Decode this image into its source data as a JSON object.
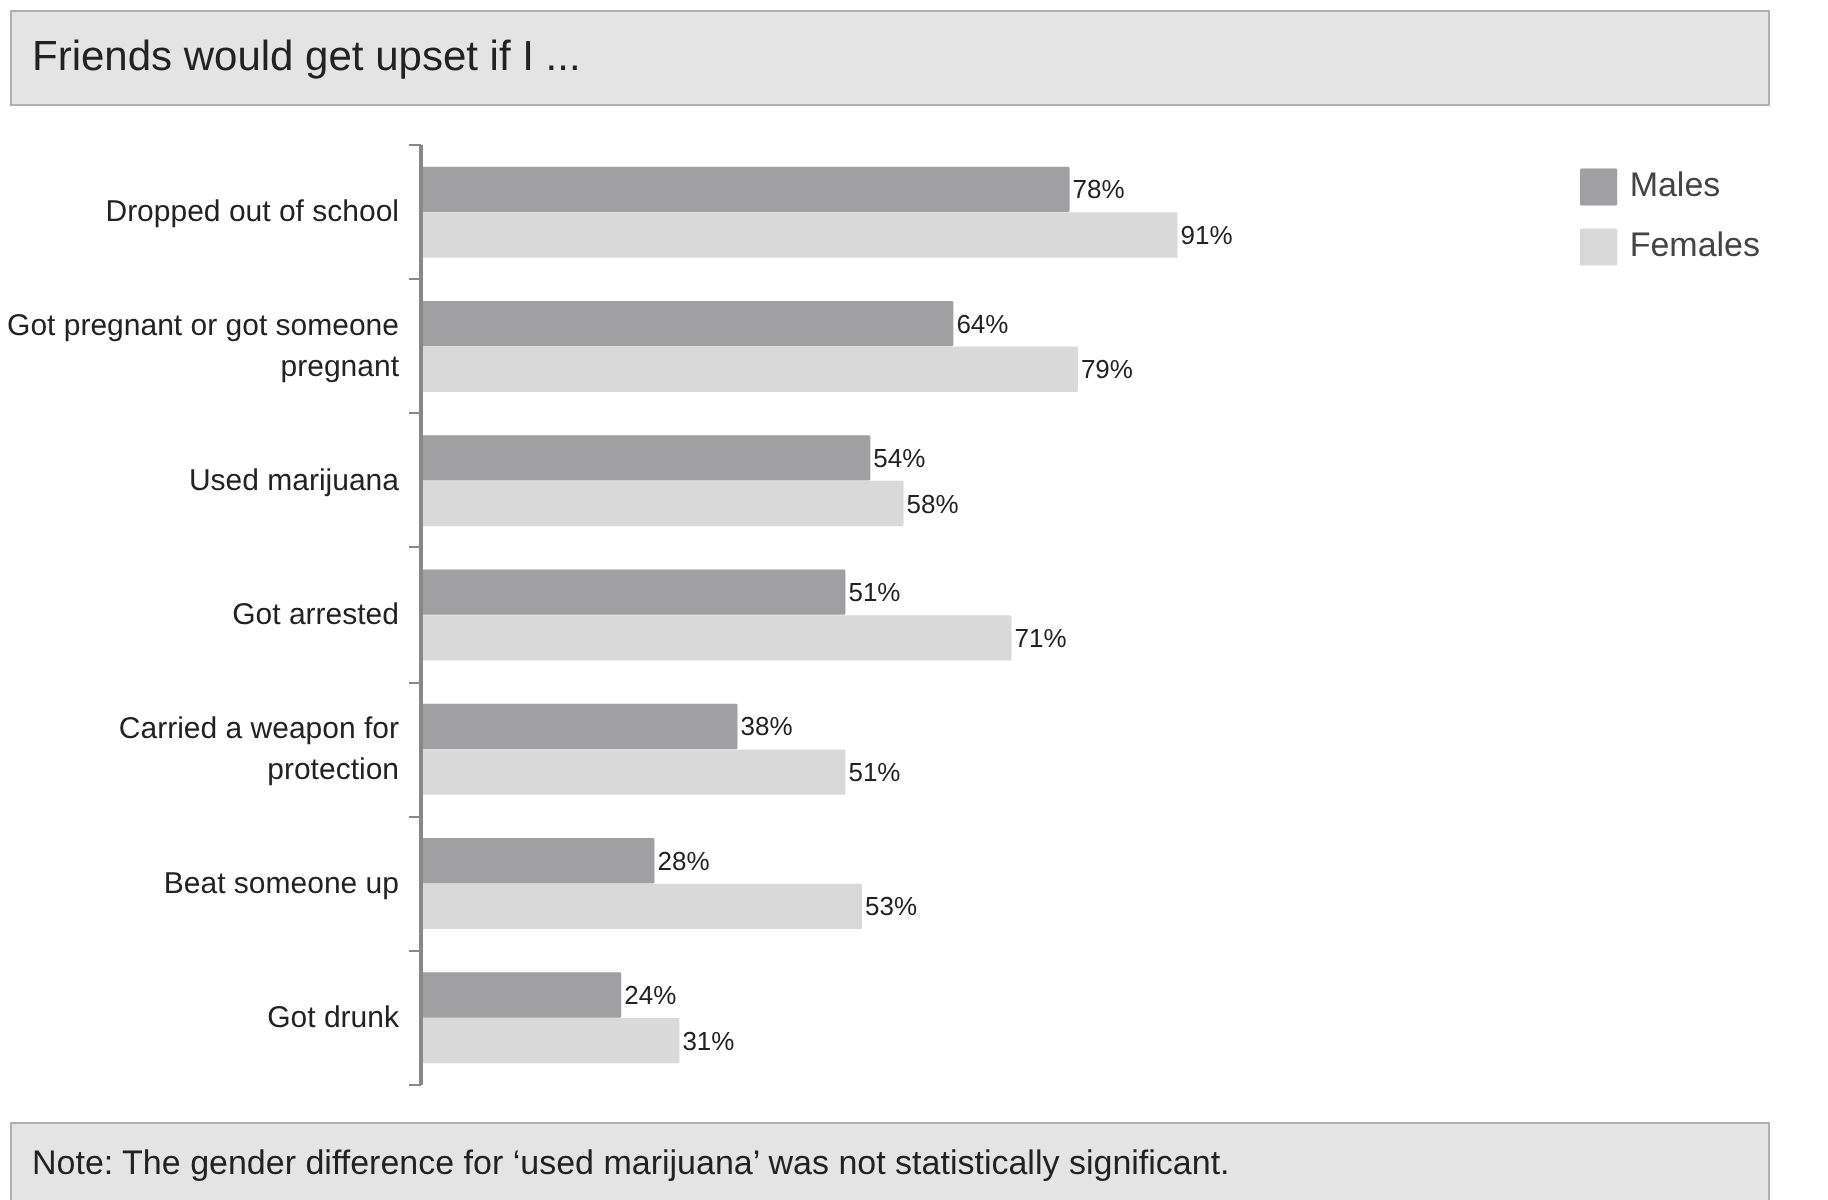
{
  "chart_data": {
    "type": "bar",
    "orientation": "horizontal",
    "title": "Friends would get upset if I ...",
    "categories": [
      "Dropped out of school",
      "Got pregnant or got someone pregnant",
      "Used marijuana",
      "Got arrested",
      "Carried a weapon for protection",
      "Beat someone up",
      "Got drunk"
    ],
    "series": [
      {
        "name": "Males",
        "color": "#a0a0a2",
        "values": [
          78,
          64,
          54,
          51,
          38,
          28,
          24
        ],
        "value_labels": [
          "78%",
          "64%",
          "54%",
          "51%",
          "38%",
          "28%",
          "24%"
        ]
      },
      {
        "name": "Females",
        "color": "#d9d9d9",
        "values": [
          91,
          79,
          58,
          71,
          51,
          53,
          31
        ],
        "value_labels": [
          "91%",
          "79%",
          "58%",
          "71%",
          "51%",
          "53%",
          "31%"
        ]
      }
    ],
    "legend": "top right",
    "grid": false,
    "tick_labels": "y",
    "annotations": [
      "Note: The gender difference for ‘used marijuana’ was not statistically significant."
    ]
  }
}
